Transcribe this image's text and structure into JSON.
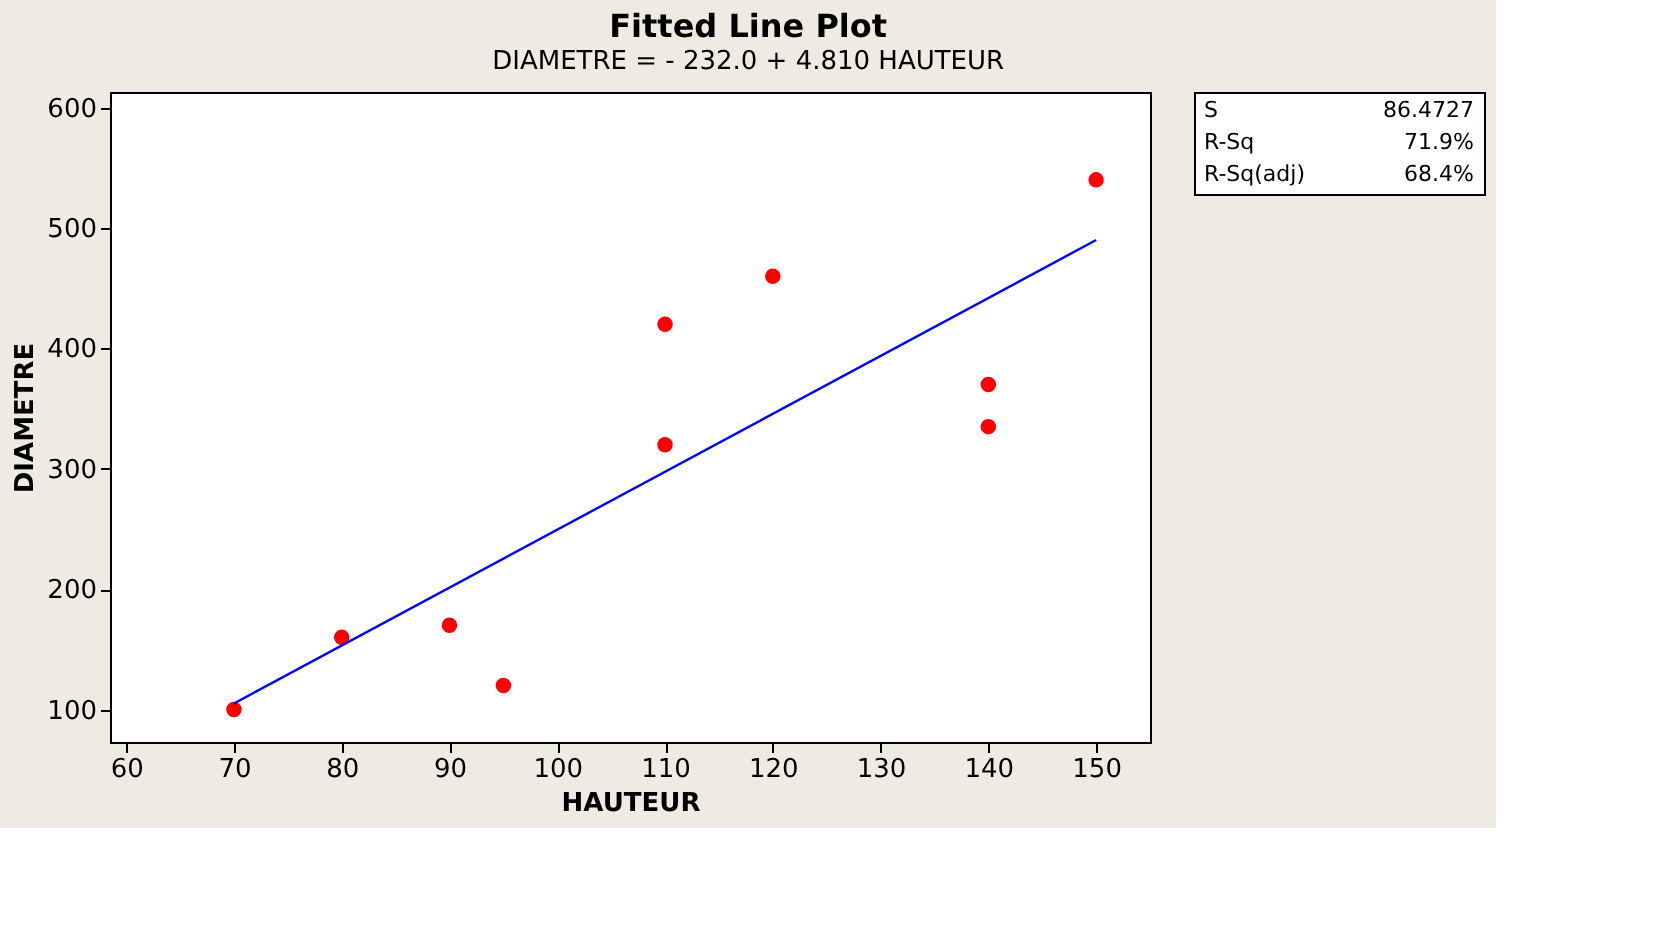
{
  "chart_data": {
    "type": "scatter",
    "title": "Fitted Line Plot",
    "subtitle": "DIAMETRE =  - 232.0 + 4.810 HAUTEUR",
    "xlabel": "HAUTEUR",
    "ylabel": "DIAMETRE",
    "x": [
      70,
      80,
      90,
      95,
      110,
      110,
      120,
      140,
      140,
      150
    ],
    "series": [
      {
        "color": "#ff0000",
        "values": [
          100,
          160,
          170,
          120,
          420,
          320,
          460,
          370,
          335,
          540
        ]
      },
      {
        "type": "line",
        "marker": "none",
        "color": "#0000ff",
        "x": [
          70,
          150
        ],
        "values": [
          105,
          490
        ]
      }
    ],
    "xlim": [
      58.5,
      155
    ],
    "xticks": [
      60,
      70,
      80,
      90,
      100,
      110,
      120,
      130,
      140,
      150
    ],
    "ylim": [
      73,
      613
    ],
    "yticks": [
      100,
      200,
      300,
      400,
      500,
      600
    ],
    "grid": false,
    "legend": false,
    "marker": "circle",
    "line_style": "solid",
    "annotations": [
      "S",
      "86.4727",
      "R-Sq",
      "71.9%",
      "R-Sq(adj)",
      "68.4%"
    ]
  }
}
